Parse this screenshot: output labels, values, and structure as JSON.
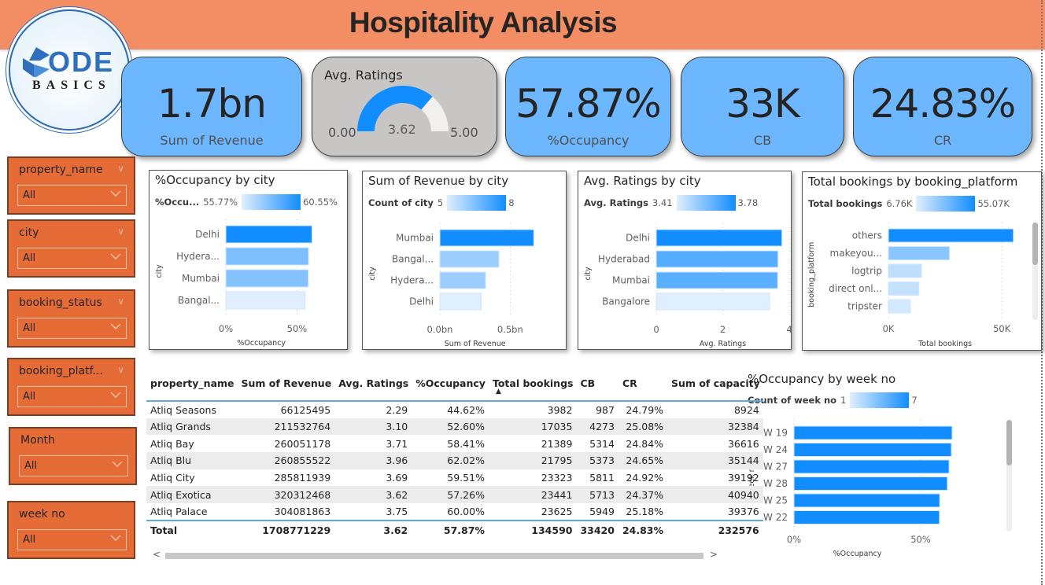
{
  "header": {
    "title": "Hospitality Analysis"
  },
  "logo": {
    "word1": "ODE",
    "word2": "BASICS"
  },
  "kpis": {
    "revenue": {
      "value": "1.7bn",
      "label": "Sum of Revenue"
    },
    "ratings_gauge": {
      "title": "Avg. Ratings",
      "value": 3.62,
      "value_label": "3.62",
      "min": 0,
      "max": 5,
      "min_label": "0.00",
      "max_label": "5.00"
    },
    "occupancy": {
      "value": "57.87%",
      "label": "%Occupancy"
    },
    "cb": {
      "value": "33K",
      "label": "CB"
    },
    "cr": {
      "value": "24.83%",
      "label": "CR"
    }
  },
  "slicers": [
    {
      "title": "property_name",
      "value": "All"
    },
    {
      "title": "city",
      "value": "All"
    },
    {
      "title": "booking_status",
      "value": "All"
    },
    {
      "title": "booking_platf...",
      "value": "All"
    },
    {
      "title": "Month",
      "value": "All"
    },
    {
      "title": "week no",
      "value": "All"
    }
  ],
  "colors": {
    "banner": "#f38d63",
    "kpi": "#6cb7ff",
    "slicer": "#e56b37",
    "bar_max": "#118dff",
    "bar_min": "#e0efff"
  },
  "chart_data": [
    {
      "type": "bar",
      "orientation": "horizontal",
      "title": "%Occupancy by city",
      "categories": [
        "Delhi",
        "Hydera...",
        "Mumbai",
        "Bangal..."
      ],
      "values": [
        60.55,
        58.1,
        57.9,
        55.77
      ],
      "xlabel": "%Occupancy",
      "ylabel": "city",
      "xlim": [
        0,
        68
      ],
      "xticks": [
        0,
        50
      ],
      "xtick_labels": [
        "0%",
        "50%"
      ],
      "legend": {
        "label": "%Occu...",
        "min_label": "55.77%",
        "max_label": "60.55%",
        "min": 55.77,
        "max": 60.55
      },
      "color_values": [
        60.55,
        58.1,
        57.9,
        55.77
      ]
    },
    {
      "type": "bar",
      "orientation": "horizontal",
      "title": "Sum of Revenue by city",
      "categories": [
        "Mumbai",
        "Bangal...",
        "Hydera...",
        "Delhi"
      ],
      "values": [
        0.668,
        0.42,
        0.325,
        0.294
      ],
      "xlabel": "Sum of Revenue",
      "ylabel": "city",
      "xlim": [
        0,
        0.75
      ],
      "xticks": [
        0,
        0.5
      ],
      "xtick_labels": [
        "0.0bn",
        "0.5bn"
      ],
      "legend": {
        "label": "Count of city",
        "min_label": "5",
        "max_label": "8",
        "min": 5,
        "max": 8
      },
      "color_values": [
        8,
        6,
        6,
        5
      ]
    },
    {
      "type": "bar",
      "orientation": "horizontal",
      "title": "Avg. Ratings by city",
      "categories": [
        "Delhi",
        "Hyderabad",
        "Mumbai",
        "Bangalore"
      ],
      "values": [
        3.78,
        3.66,
        3.65,
        3.41
      ],
      "xlabel": "Avg. Ratings",
      "ylabel": "city",
      "xlim": [
        0,
        4
      ],
      "xticks": [
        0,
        2,
        4
      ],
      "xtick_labels": [
        "0",
        "2",
        "4"
      ],
      "legend": {
        "label": "Avg. Ratings",
        "min_label": "3.41",
        "max_label": "3.78",
        "min": 3.41,
        "max": 3.78
      },
      "color_values": [
        3.78,
        3.66,
        3.65,
        3.41
      ]
    },
    {
      "type": "bar",
      "orientation": "horizontal",
      "title": "Total bookings by booking_platform",
      "categories": [
        "others",
        "makeyou...",
        "logtrip",
        "direct onl...",
        "tripster"
      ],
      "values": [
        55.07,
        26.9,
        14.6,
        13.4,
        9.7
      ],
      "xlabel": "Total bookings",
      "ylabel": "booking_platform",
      "xlim": [
        0,
        60
      ],
      "xticks": [
        0,
        50
      ],
      "xtick_labels": [
        "0K",
        "50K"
      ],
      "legend": {
        "label": "Total bookings",
        "min_label": "6.76K",
        "max_label": "55.07K",
        "min": 6.76,
        "max": 55.07
      },
      "color_values": [
        55.07,
        26.9,
        14.6,
        13.4,
        9.7
      ],
      "scrollable": true
    },
    {
      "type": "bar",
      "orientation": "horizontal",
      "title": "%Occupancy by week no",
      "categories": [
        "W 19",
        "W 24",
        "W 27",
        "W 28",
        "W 25",
        "W 22"
      ],
      "values": [
        62.4,
        62.1,
        61.2,
        60.5,
        57.5,
        57.4
      ],
      "xlabel": "%Occupancy",
      "ylabel": "week no",
      "xlim": [
        0,
        68
      ],
      "xticks": [
        0,
        50
      ],
      "xtick_labels": [
        "0%",
        "50%"
      ],
      "legend": {
        "label": "Count of week no",
        "min_label": "1",
        "max_label": "7",
        "min": 1,
        "max": 7
      },
      "color_values": [
        7,
        7,
        7,
        7,
        7,
        7
      ],
      "scrollable": true
    }
  ],
  "table": {
    "columns": [
      "property_name",
      "Sum of Revenue",
      "Avg. Ratings",
      "%Occupancy",
      "Total bookings",
      "CB",
      "CR",
      "Sum of capacity"
    ],
    "sorted_column": "Total bookings",
    "rows": [
      [
        "Atliq Seasons",
        "66125495",
        "2.29",
        "44.62%",
        "3982",
        "987",
        "24.79%",
        "8924"
      ],
      [
        "Atliq Grands",
        "211532764",
        "3.10",
        "52.60%",
        "17035",
        "4273",
        "25.08%",
        "32384"
      ],
      [
        "Atliq Bay",
        "260051178",
        "3.71",
        "58.41%",
        "21389",
        "5314",
        "24.84%",
        "36616"
      ],
      [
        "Atliq Blu",
        "260855522",
        "3.96",
        "62.02%",
        "21795",
        "5373",
        "24.65%",
        "35144"
      ],
      [
        "Atliq City",
        "285811939",
        "3.69",
        "59.51%",
        "23323",
        "5811",
        "24.92%",
        "39192"
      ],
      [
        "Atliq Exotica",
        "320312468",
        "3.62",
        "57.26%",
        "23441",
        "5713",
        "24.37%",
        "40940"
      ],
      [
        "Atliq Palace",
        "304081863",
        "3.75",
        "60.00%",
        "23625",
        "5949",
        "25.18%",
        "39376"
      ]
    ],
    "total": [
      "Total",
      "1708771229",
      "3.62",
      "57.87%",
      "134590",
      "33420",
      "24.83%",
      "232576"
    ],
    "scroll_left": "<",
    "scroll_right": ">",
    "sort_indicator": "▲"
  }
}
